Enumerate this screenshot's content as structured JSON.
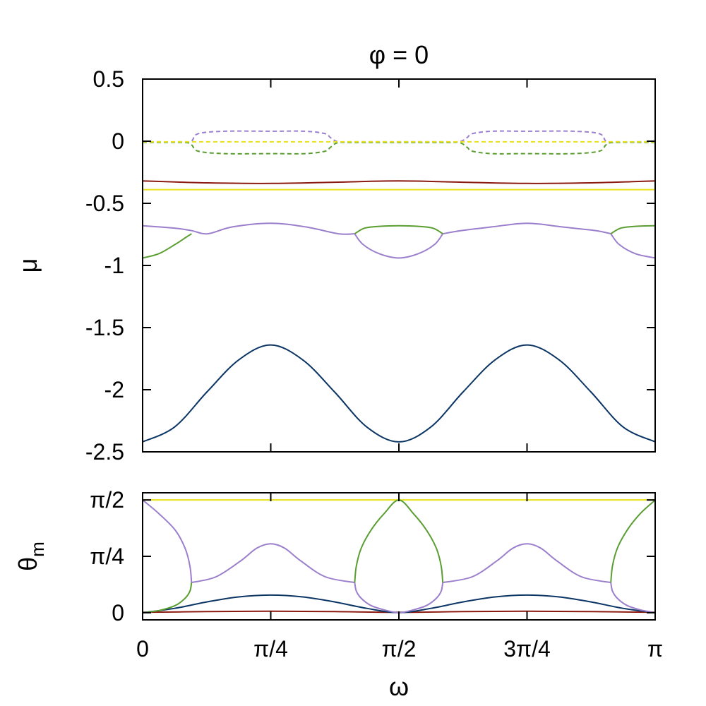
{
  "title": "φ = 0",
  "colors": {
    "navy": "#0b3564",
    "darkred": "#8b1a10",
    "yellow": "#e6e11a",
    "purple": "#9b7fcc",
    "green": "#5a9e32"
  },
  "chart_data": [
    {
      "type": "line",
      "title": "φ = 0",
      "ylabel": "μ",
      "xlim": [
        0,
        3.14159
      ],
      "ylim": [
        -2.5,
        0.5
      ],
      "yticks": [
        {
          "value": 0.5,
          "label": "0.5"
        },
        {
          "value": 0,
          "label": "0"
        },
        {
          "value": -0.5,
          "label": "-0.5"
        },
        {
          "value": -1,
          "label": "-1"
        },
        {
          "value": -1.5,
          "label": "-1.5"
        },
        {
          "value": -2,
          "label": "-2"
        },
        {
          "value": -2.5,
          "label": "-2.5"
        }
      ],
      "grid": false,
      "series": [
        {
          "color": "navy",
          "style": "solid",
          "x": [
            0,
            0.196,
            0.393,
            0.589,
            0.785,
            0.982,
            1.178,
            1.374,
            1.571,
            1.767,
            1.963,
            2.16,
            2.356,
            2.553,
            2.749,
            2.945,
            3.142
          ],
          "y": [
            -2.42,
            -2.3,
            -2.02,
            -1.76,
            -1.64,
            -1.76,
            -2.02,
            -2.3,
            -2.42,
            -2.3,
            -2.02,
            -1.76,
            -1.64,
            -1.76,
            -2.02,
            -2.3,
            -2.42
          ]
        },
        {
          "color": "darkred",
          "style": "solid",
          "x": [
            0,
            0.393,
            0.785,
            1.178,
            1.571,
            1.963,
            2.356,
            2.749,
            3.142
          ],
          "y": [
            -0.32,
            -0.335,
            -0.34,
            -0.33,
            -0.32,
            -0.33,
            -0.34,
            -0.335,
            -0.32
          ]
        },
        {
          "color": "yellow",
          "style": "solid",
          "x": [
            0,
            3.142
          ],
          "y": [
            -0.39,
            -0.39
          ]
        },
        {
          "color": "purple",
          "style": "solid",
          "x": [
            0,
            0.2,
            0.3,
            0.4,
            0.55,
            0.785,
            1.0,
            1.2,
            1.3
          ],
          "y": [
            -0.68,
            -0.7,
            -0.72,
            -0.745,
            -0.69,
            -0.66,
            -0.69,
            -0.745,
            -0.745
          ]
        },
        {
          "color": "purple",
          "style": "solid",
          "x": [
            1.3,
            1.35,
            1.45,
            1.571,
            1.69,
            1.79,
            1.84
          ],
          "y": [
            -0.745,
            -0.83,
            -0.905,
            -0.94,
            -0.905,
            -0.83,
            -0.745
          ]
        },
        {
          "color": "purple",
          "style": "solid",
          "x": [
            1.84,
            1.95,
            2.14,
            2.356,
            2.57,
            2.78,
            2.87
          ],
          "y": [
            -0.745,
            -0.72,
            -0.69,
            -0.66,
            -0.69,
            -0.72,
            -0.745
          ]
        },
        {
          "color": "purple",
          "style": "solid",
          "x": [
            2.87,
            2.92,
            3.02,
            3.142
          ],
          "y": [
            -0.745,
            -0.83,
            -0.905,
            -0.94
          ]
        },
        {
          "color": "green",
          "style": "solid",
          "x": [
            0,
            0.1,
            0.2,
            0.27,
            0.3
          ],
          "y": [
            -0.94,
            -0.905,
            -0.83,
            -0.77,
            -0.745
          ]
        },
        {
          "color": "green",
          "style": "solid",
          "x": [
            1.3,
            1.36,
            1.45,
            1.571,
            1.69,
            1.78,
            1.84
          ],
          "y": [
            -0.745,
            -0.7,
            -0.685,
            -0.68,
            -0.685,
            -0.7,
            -0.745
          ]
        },
        {
          "color": "green",
          "style": "solid",
          "x": [
            2.87,
            2.93,
            3.02,
            3.142
          ],
          "y": [
            -0.745,
            -0.7,
            -0.685,
            -0.68
          ]
        },
        {
          "color": "purple",
          "style": "dashed",
          "x": [
            0,
            0.25,
            0.3,
            0.34,
            0.5,
            0.785,
            1.0,
            1.12,
            1.15,
            1.2,
            1.3,
            1.84,
            1.94,
            1.99,
            2.02,
            2.14,
            2.356,
            2.64,
            2.8,
            2.84,
            2.89,
            3.142
          ],
          "y": [
            -0.005,
            -0.005,
            0.0,
            0.06,
            0.08,
            0.08,
            0.08,
            0.06,
            0.03,
            -0.005,
            -0.005,
            -0.005,
            -0.005,
            0.03,
            0.06,
            0.08,
            0.08,
            0.08,
            0.06,
            0.0,
            -0.005,
            -0.005
          ]
        },
        {
          "color": "green",
          "style": "dashed",
          "x": [
            0,
            0.25,
            0.3,
            0.34,
            0.5,
            0.785,
            1.0,
            1.12,
            1.15,
            1.2,
            1.3,
            1.84,
            1.94,
            1.99,
            2.02,
            2.14,
            2.356,
            2.64,
            2.8,
            2.84,
            2.89,
            3.142
          ],
          "y": [
            -0.01,
            -0.01,
            -0.03,
            -0.08,
            -0.1,
            -0.1,
            -0.1,
            -0.08,
            -0.05,
            -0.01,
            -0.01,
            -0.01,
            -0.01,
            -0.05,
            -0.08,
            -0.1,
            -0.1,
            -0.1,
            -0.08,
            -0.03,
            -0.01,
            -0.01
          ]
        },
        {
          "color": "yellow",
          "style": "dashed",
          "x": [
            0,
            3.142
          ],
          "y": [
            -0.005,
            -0.005
          ]
        }
      ]
    },
    {
      "type": "line",
      "ylabel": "θm",
      "ylabel_main": "θ",
      "ylabel_sub": "m",
      "xlabel": "ω",
      "xlim": [
        0,
        3.14159
      ],
      "ylim": [
        -0.1,
        1.6708
      ],
      "xticks": [
        {
          "value": 0,
          "label": "0"
        },
        {
          "value": 0.785398,
          "label": "π/4"
        },
        {
          "value": 1.570796,
          "label": "π/2"
        },
        {
          "value": 2.356194,
          "label": "3π/4"
        },
        {
          "value": 3.141593,
          "label": "π"
        }
      ],
      "yticks": [
        {
          "value": 0,
          "label": "0"
        },
        {
          "value": 0.785398,
          "label": "π/4"
        },
        {
          "value": 1.570796,
          "label": "π/2"
        }
      ],
      "grid": false,
      "series": [
        {
          "color": "yellow",
          "style": "solid",
          "x": [
            0,
            3.142
          ],
          "y": [
            1.571,
            1.571
          ]
        },
        {
          "color": "darkred",
          "style": "solid",
          "x": [
            0,
            0.393,
            0.785,
            1.178,
            1.571,
            1.963,
            2.356,
            2.749,
            3.142
          ],
          "y": [
            0.005,
            0.015,
            0.02,
            0.015,
            0.005,
            0.015,
            0.02,
            0.015,
            0.005
          ]
        },
        {
          "color": "navy",
          "style": "solid",
          "x": [
            0,
            0.196,
            0.393,
            0.589,
            0.785,
            0.982,
            1.178,
            1.374,
            1.571,
            1.767,
            1.963,
            2.16,
            2.356,
            2.553,
            2.749,
            2.945,
            3.142
          ],
          "y": [
            0.0,
            0.06,
            0.15,
            0.22,
            0.245,
            0.22,
            0.15,
            0.06,
            0.0,
            0.06,
            0.15,
            0.22,
            0.245,
            0.22,
            0.15,
            0.06,
            0.0
          ]
        },
        {
          "color": "purple",
          "style": "solid",
          "x": [
            0,
            0.1,
            0.2,
            0.26,
            0.29,
            0.3
          ],
          "y": [
            1.57,
            1.38,
            1.15,
            0.9,
            0.65,
            0.42
          ]
        },
        {
          "color": "purple",
          "style": "solid",
          "x": [
            0.3,
            0.45,
            0.6,
            0.7,
            0.785,
            0.87,
            0.97,
            1.12,
            1.3
          ],
          "y": [
            0.42,
            0.5,
            0.72,
            0.9,
            0.96,
            0.9,
            0.72,
            0.5,
            0.42
          ]
        },
        {
          "color": "purple",
          "style": "solid",
          "x": [
            1.3,
            1.31,
            1.34,
            1.4,
            1.48,
            1.571,
            1.66,
            1.74,
            1.8,
            1.83,
            1.84
          ],
          "y": [
            0.42,
            0.3,
            0.2,
            0.1,
            0.04,
            0.0,
            0.04,
            0.1,
            0.2,
            0.3,
            0.42
          ]
        },
        {
          "color": "purple",
          "style": "solid",
          "x": [
            1.84,
            2.02,
            2.17,
            2.27,
            2.356,
            2.44,
            2.54,
            2.69,
            2.87
          ],
          "y": [
            0.42,
            0.5,
            0.72,
            0.9,
            0.96,
            0.9,
            0.72,
            0.5,
            0.42
          ]
        },
        {
          "color": "purple",
          "style": "solid",
          "x": [
            2.87,
            2.88,
            2.91,
            2.97,
            3.05,
            3.142
          ],
          "y": [
            0.42,
            0.3,
            0.2,
            0.1,
            0.04,
            0.0
          ]
        },
        {
          "color": "green",
          "style": "solid",
          "x": [
            0,
            0.1,
            0.2,
            0.26,
            0.29,
            0.3
          ],
          "y": [
            0.0,
            0.03,
            0.1,
            0.2,
            0.3,
            0.42
          ]
        },
        {
          "color": "green",
          "style": "solid",
          "x": [
            1.3,
            1.31,
            1.34,
            1.4,
            1.48,
            1.571,
            1.66,
            1.74,
            1.8,
            1.83,
            1.84
          ],
          "y": [
            0.42,
            0.65,
            0.9,
            1.15,
            1.38,
            1.57,
            1.38,
            1.15,
            0.9,
            0.65,
            0.42
          ]
        },
        {
          "color": "green",
          "style": "solid",
          "x": [
            2.87,
            2.88,
            2.91,
            2.97,
            3.05,
            3.142
          ],
          "y": [
            0.42,
            0.65,
            0.9,
            1.15,
            1.38,
            1.57
          ]
        }
      ]
    }
  ]
}
